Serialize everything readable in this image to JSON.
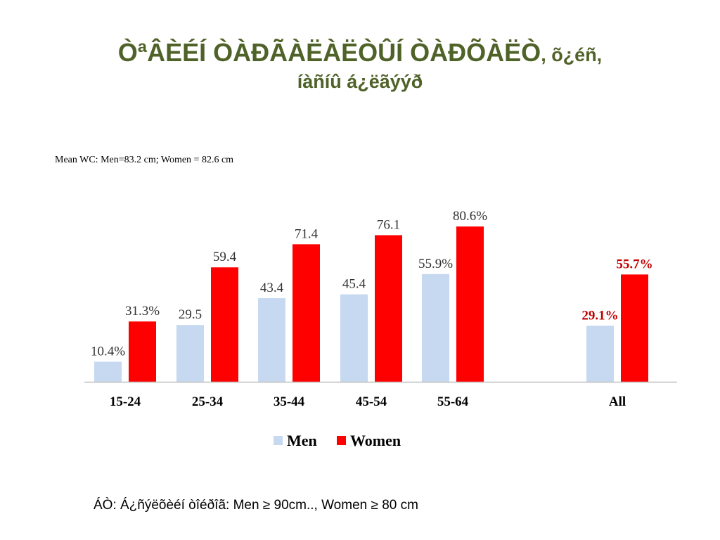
{
  "slide": {
    "title_line1_main": "ÒªÂÈÉÍ ÒÀÐÃÀËÀËÒÛÍ ÒÀÐÕÀËÒ",
    "title_line1_tail": ", õ¿éñ,",
    "title_line2": "íàñíû á¿ëãýýð",
    "footnote": "ÁÒ:  Á¿ñýëõèéí òîéðîã:  Men ≥ 90cm.., Women ≥ 80 cm"
  },
  "chart_data": {
    "type": "bar",
    "subtitle": "Mean WC:  Men=83.2 cm; Women = 82.6 cm",
    "categories": [
      "15-24",
      "25-34",
      "35-44",
      "45-54",
      "55-64",
      "All"
    ],
    "series": [
      {
        "name": "Men",
        "color": "#c6d9f1",
        "values": [
          10.4,
          29.5,
          43.4,
          45.4,
          55.9,
          29.1
        ],
        "labels": [
          "10.4%",
          "29.5",
          "43.4",
          "45.4",
          "55.9%",
          "29.1%"
        ]
      },
      {
        "name": "Women",
        "color": "#ff0000",
        "values": [
          31.3,
          59.4,
          71.4,
          76.1,
          80.6,
          55.7
        ],
        "labels": [
          "31.3%",
          "59.4",
          "71.4",
          "76.1",
          "80.6%",
          "55.7%"
        ]
      }
    ],
    "highlight_label_color": "#c00000",
    "highlight_categories": [
      "All"
    ],
    "ylim": [
      0,
      100
    ],
    "grid": false,
    "legend_position": "bottom"
  }
}
